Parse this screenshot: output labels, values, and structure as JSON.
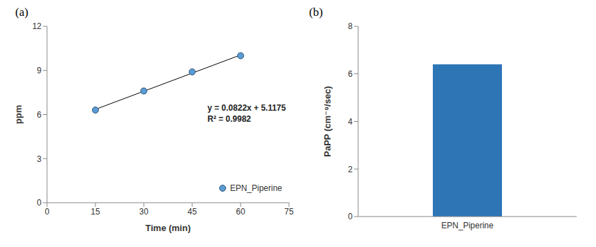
{
  "chart_data": [
    {
      "type": "scatter",
      "label": "(a)",
      "x": [
        15,
        30,
        45,
        60
      ],
      "series": [
        {
          "name": "EPN_Piperine",
          "color": "#5b9bd5",
          "marker": "circle",
          "values": [
            6.3,
            7.6,
            8.9,
            10.0
          ]
        }
      ],
      "trendline": {
        "x": [
          15,
          60
        ],
        "values": [
          6.35,
          10.05
        ],
        "color": "#000000"
      },
      "annotations": [
        "y = 0.0822x + 5.1175",
        "R² = 0.9982"
      ],
      "xlabel": "Time (min)",
      "ylabel": "ppm",
      "xlim": [
        0,
        75
      ],
      "xticks": [
        0,
        15,
        30,
        45,
        60,
        75
      ],
      "ylim": [
        0,
        12
      ],
      "yticks": [
        0,
        3,
        6,
        9,
        12
      ],
      "grid": false,
      "legend": "lower right"
    },
    {
      "type": "bar",
      "label": "(b)",
      "categories": [
        "EPN_Piperine"
      ],
      "values": [
        6.4
      ],
      "color": "#2e75b6",
      "ylabel": "PaPP (cm⁻⁹/sec)",
      "ylim": [
        0,
        8
      ],
      "yticks": [
        0,
        2,
        4,
        6,
        8
      ],
      "grid": false
    }
  ]
}
